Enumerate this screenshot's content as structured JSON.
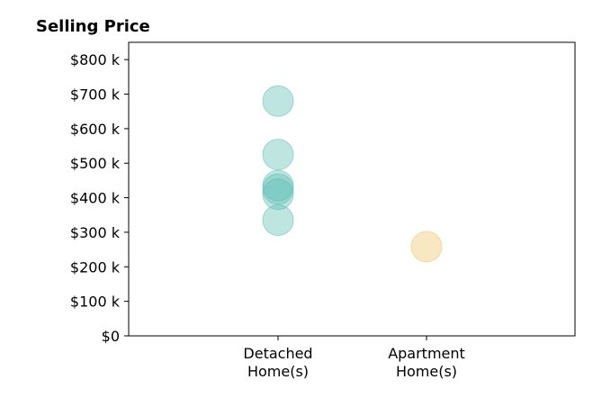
{
  "chart_data": {
    "type": "scatter",
    "title": "Selling Price",
    "xlabel": "",
    "ylabel": "",
    "categories": [
      {
        "lines": [
          "Detached",
          "Home(s)"
        ]
      },
      {
        "lines": [
          "Apartment",
          "Home(s)"
        ]
      }
    ],
    "ylim": [
      0,
      850000
    ],
    "y_ticks": [
      {
        "value": 0,
        "label": "$0"
      },
      {
        "value": 100000,
        "label": "$100 k"
      },
      {
        "value": 200000,
        "label": "$200 k"
      },
      {
        "value": 300000,
        "label": "$300 k"
      },
      {
        "value": 400000,
        "label": "$400 k"
      },
      {
        "value": 500000,
        "label": "$500 k"
      },
      {
        "value": 600000,
        "label": "$600 k"
      },
      {
        "value": 700000,
        "label": "$700 k"
      },
      {
        "value": 800000,
        "label": "$800 k"
      }
    ],
    "series": [
      {
        "category": 0,
        "color": "#5fbfb4",
        "values": [
          680000,
          525000,
          435000,
          425000,
          410000,
          335000
        ]
      },
      {
        "category": 1,
        "color": "#ecc56a",
        "values": [
          258000
        ]
      }
    ],
    "grid": false,
    "legend": "none"
  }
}
